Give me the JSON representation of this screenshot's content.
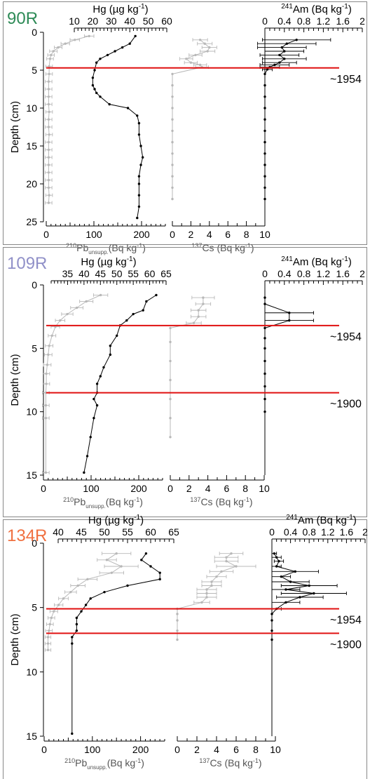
{
  "chart_data": [
    {
      "type": "line",
      "panel_label": "90R",
      "label_color": "#2e8b57",
      "ylabel": "Depth (cm)",
      "ylim": [
        0,
        25
      ],
      "y_ticks": [
        0,
        5,
        10,
        15,
        20,
        25
      ],
      "top_axis": {
        "label": "Hg (µg kg",
        "superscript": "-1",
        "close": ")",
        "xlim": [
          10,
          60
        ],
        "ticks": [
          10,
          20,
          30,
          40,
          50,
          60
        ]
      },
      "bottom_left_axis": {
        "label_sup": "210",
        "label_main": "Pb",
        "label_sub": "unsupp.",
        "label_rest": "(Bq kg",
        "label_rest_sup": "-1",
        "label_close": ")",
        "xlim": [
          0,
          250
        ],
        "ticks": [
          0,
          100,
          200
        ],
        "minor_ticks": [
          50,
          150
        ]
      },
      "bottom_mid_axis": {
        "label_sup": "137",
        "label_main": "Cs (Bq kg",
        "label_main_sup": "-1",
        "label_close": ")",
        "xlim": [
          0,
          10
        ],
        "ticks": [
          0,
          2,
          4,
          6,
          8,
          10
        ]
      },
      "top_right_axis": {
        "label_sup": "241",
        "label_main": "Am (Bq kg",
        "label_main_sup": "-1",
        "label_close": ")",
        "xlim": [
          0,
          2
        ],
        "ticks": [
          0,
          0.4,
          0.8,
          1.2,
          1.6,
          2
        ],
        "tick_labels": [
          "0",
          "0.4",
          "0.8",
          "1.2",
          "1.6",
          "2"
        ]
      },
      "date_lines": [
        {
          "depth": 4.7,
          "label": "~1954"
        }
      ],
      "series": [
        {
          "key": "hg",
          "axis": "top",
          "color": "#000000",
          "x": [
            43,
            40,
            36,
            32,
            28,
            24,
            22,
            21,
            20,
            20,
            21,
            22,
            24,
            29,
            39,
            44,
            45,
            45,
            46,
            47,
            46,
            45,
            45,
            45,
            45,
            44
          ],
          "y": [
            0.5,
            1.5,
            2,
            2.5,
            3,
            3.5,
            4,
            5,
            6,
            7,
            7.5,
            8,
            8.5,
            9.5,
            10,
            11,
            12,
            13.5,
            15,
            16.5,
            17.5,
            19,
            20,
            21.5,
            23,
            24.5
          ]
        },
        {
          "key": "pb",
          "axis": "bottom_left",
          "color": "#b8b8b8",
          "x": [
            90,
            60,
            40,
            25,
            15,
            10,
            8,
            6,
            6,
            5,
            5,
            5,
            5,
            6,
            5,
            5,
            6,
            5,
            5,
            5,
            5,
            5,
            5,
            5,
            6,
            5
          ],
          "xerr": [
            10,
            10,
            9,
            8,
            8,
            7,
            7,
            7,
            7,
            7,
            7,
            7,
            7,
            7,
            7,
            7,
            7,
            7,
            7,
            7,
            7,
            7,
            7,
            7,
            7,
            7
          ],
          "y": [
            0.5,
            1,
            1.5,
            2,
            2.5,
            3,
            3.5,
            4.5,
            5.5,
            6.5,
            7.5,
            8.5,
            9.5,
            10.5,
            11.5,
            12.5,
            13.5,
            14.5,
            15.5,
            16.5,
            17.5,
            18.5,
            19.5,
            20.5,
            21.5,
            22.5
          ]
        },
        {
          "key": "cs",
          "axis": "bottom_mid",
          "color": "#b8b8b8",
          "x": [
            3.0,
            3.5,
            4.0,
            3.8,
            2.5,
            1.5,
            2.0,
            3.0,
            3.2,
            0,
            0,
            0,
            0,
            0,
            0,
            0,
            0,
            0,
            0,
            0,
            0
          ],
          "xerr": [
            0.8,
            0.8,
            0.8,
            0.8,
            0.7,
            0.7,
            0.7,
            0.7,
            0.7,
            0,
            0,
            0,
            0,
            0,
            0,
            0,
            0,
            0,
            0,
            0,
            0
          ],
          "y": [
            1,
            1.5,
            2,
            2.5,
            3,
            3.5,
            4,
            4.3,
            4.6,
            5.5,
            7,
            8.5,
            10,
            11.5,
            13,
            14.5,
            16,
            17.5,
            19,
            20.5,
            22
          ]
        },
        {
          "key": "am",
          "axis": "top_right",
          "color": "#000000",
          "x": [
            0.65,
            0.45,
            0.35,
            0.4,
            0.3,
            0.4,
            0.3,
            0.2,
            0.1,
            0.05,
            0,
            0,
            0,
            0,
            0,
            0,
            0,
            0,
            0,
            0,
            0,
            0
          ],
          "xerr": [
            0.7,
            0.6,
            0.5,
            0.4,
            0.4,
            0.45,
            0.35,
            0.3,
            0.2,
            0.1,
            0,
            0,
            0,
            0,
            0,
            0,
            0,
            0,
            0,
            0,
            0,
            0
          ],
          "y": [
            1,
            1.5,
            2,
            2.5,
            3,
            3.5,
            4,
            4.3,
            4.6,
            4.9,
            5.5,
            7,
            8.5,
            10,
            11.5,
            13,
            14.5,
            16,
            17.5,
            19,
            20.5,
            22
          ]
        }
      ]
    },
    {
      "type": "line",
      "panel_label": "109R",
      "label_color": "#9090c8",
      "ylabel": "Depth (cm)",
      "ylim": [
        0,
        15
      ],
      "y_ticks": [
        0,
        5,
        10,
        15
      ],
      "top_axis": {
        "label": "Hg (µg kg",
        "superscript": "-1",
        "close": ")",
        "xlim": [
          30,
          65
        ],
        "ticks": [
          35,
          40,
          45,
          50,
          55,
          60,
          65
        ]
      },
      "bottom_left_axis": {
        "label_sup": "210",
        "label_main": "Pb",
        "label_sub": "unsupp.",
        "label_rest": "(Bq kg",
        "label_rest_sup": "-1",
        "label_close": ")",
        "xlim": [
          0,
          250
        ],
        "ticks": [
          0,
          100,
          200
        ],
        "minor_ticks": [
          50,
          150
        ]
      },
      "bottom_mid_axis": {
        "label_sup": "137",
        "label_main": "Cs (Bq kg",
        "label_main_sup": "-1",
        "label_close": ")",
        "xlim": [
          0,
          10
        ],
        "ticks": [
          0,
          2,
          4,
          6,
          8,
          10
        ]
      },
      "top_right_axis": {
        "label_sup": "241",
        "label_main": "Am (Bq kg",
        "label_main_sup": "-1",
        "label_close": ")",
        "xlim": [
          0,
          2
        ],
        "ticks": [
          0,
          0.4,
          0.8,
          1.2,
          1.6,
          2
        ],
        "tick_labels": [
          "0",
          "0.4",
          "0.8",
          "1.2",
          "1.6",
          "2"
        ]
      },
      "date_lines": [
        {
          "depth": 3.2,
          "label": "~1954"
        },
        {
          "depth": 8.5,
          "label": "~1900"
        }
      ],
      "series": [
        {
          "key": "hg",
          "axis": "top",
          "color": "#000000",
          "x": [
            62,
            59,
            58,
            55,
            53,
            51,
            50,
            48,
            48,
            46,
            45,
            44,
            44,
            43,
            44,
            43,
            42,
            41,
            40
          ],
          "y": [
            0.8,
            1.3,
            2,
            2.3,
            2.8,
            3.2,
            4,
            4.8,
            5.5,
            6.5,
            7.2,
            7.8,
            8.5,
            9,
            9.5,
            10.5,
            12,
            13.5,
            14.8
          ]
        },
        {
          "key": "pb",
          "axis": "bottom_left",
          "color": "#b8b8b8",
          "x": [
            120,
            90,
            70,
            50,
            35,
            25,
            18,
            12,
            10,
            8,
            6,
            6,
            5,
            5,
            5,
            5
          ],
          "xerr": [
            15,
            14,
            13,
            12,
            10,
            9,
            8,
            8,
            8,
            8,
            7,
            7,
            7,
            7,
            7,
            7
          ],
          "y": [
            0.8,
            1.3,
            1.8,
            2.3,
            2.8,
            3.3,
            4,
            4.8,
            5.5,
            6.3,
            7,
            7.8,
            8.5,
            9.5,
            10.5,
            14.8
          ]
        },
        {
          "key": "cs",
          "axis": "bottom_mid",
          "color": "#b8b8b8",
          "x": [
            3.5,
            3.5,
            3.0,
            3.0,
            2.5,
            0,
            0,
            0,
            0,
            0,
            0,
            0
          ],
          "xerr": [
            1.2,
            0.8,
            0.8,
            0.8,
            0.8,
            0,
            0,
            0,
            0,
            0,
            0,
            0
          ],
          "y": [
            1,
            1.5,
            2,
            2.5,
            3,
            3.4,
            4.5,
            6,
            7.5,
            9,
            10.5,
            12
          ]
        },
        {
          "key": "am",
          "axis": "top_right",
          "color": "#000000",
          "x": [
            0,
            0,
            0.5,
            0.5,
            0,
            0,
            0,
            0,
            0,
            0,
            0,
            0
          ],
          "xerr": [
            0,
            0,
            0.5,
            0.5,
            0,
            0,
            0,
            0,
            0,
            0,
            0,
            0
          ],
          "y": [
            1,
            1.5,
            2.2,
            2.8,
            3.4,
            4.2,
            5,
            6,
            7,
            8,
            9,
            10
          ]
        }
      ]
    },
    {
      "type": "line",
      "panel_label": "134R",
      "label_color": "#f07040",
      "ylabel": "Depth (cm)",
      "ylim": [
        0,
        15
      ],
      "y_ticks": [
        0,
        5,
        10,
        15
      ],
      "top_axis": {
        "label": "Hg (µg kg",
        "superscript": "-1",
        "close": ")",
        "xlim": [
          40,
          65
        ],
        "ticks": [
          40,
          45,
          50,
          55,
          60,
          65
        ]
      },
      "bottom_left_axis": {
        "label_sup": "210",
        "label_main": "Pb",
        "label_sub": "unsupp.",
        "label_rest": "(Bq kg",
        "label_rest_sup": "-1",
        "label_close": ")",
        "xlim": [
          0,
          250
        ],
        "ticks": [
          0,
          100,
          200
        ],
        "minor_ticks": [
          50,
          150
        ]
      },
      "bottom_mid_axis": {
        "label_sup": "137",
        "label_main": "Cs (Bq kg",
        "label_main_sup": "-1",
        "label_close": ")",
        "xlim": [
          0,
          10
        ],
        "ticks": [
          0,
          2,
          4,
          6,
          8,
          10
        ]
      },
      "top_right_axis": {
        "label_sup": "241",
        "label_main": "Am (Bq kg",
        "label_main_sup": "-1",
        "label_close": ")",
        "xlim": [
          0,
          2
        ],
        "ticks": [
          0,
          0.4,
          0.8,
          1.2,
          1.6,
          2
        ],
        "tick_labels": [
          "0",
          "0.4",
          "0.8",
          "1.2",
          "1.6",
          "2"
        ]
      },
      "date_lines": [
        {
          "depth": 5.1,
          "label": "~1954"
        },
        {
          "depth": 7.0,
          "label": "~1900"
        }
      ],
      "series": [
        {
          "key": "hg",
          "axis": "top",
          "color": "#000000",
          "x": [
            59,
            58,
            60,
            62,
            62,
            55,
            50,
            47,
            46,
            45,
            44,
            44,
            44,
            43,
            43,
            43
          ],
          "y": [
            0.8,
            1.3,
            1.8,
            2.3,
            2.8,
            3.3,
            3.8,
            4.3,
            4.8,
            5.3,
            5.8,
            6.3,
            6.8,
            7.3,
            7.8,
            14.8
          ]
        },
        {
          "key": "pb",
          "axis": "bottom_left",
          "color": "#b8b8b8",
          "x": [
            150,
            130,
            160,
            140,
            90,
            70,
            55,
            40,
            30,
            20,
            15,
            12,
            10,
            8,
            8,
            8
          ],
          "xerr": [
            30,
            20,
            35,
            25,
            20,
            15,
            12,
            10,
            9,
            8,
            7,
            7,
            7,
            6,
            6,
            6
          ],
          "y": [
            0.8,
            1.3,
            1.8,
            2.3,
            2.8,
            3.3,
            3.8,
            4.3,
            4.8,
            5.3,
            5.8,
            6.3,
            6.8,
            7.3,
            7.8,
            8.3
          ]
        },
        {
          "key": "cs",
          "axis": "bottom_mid",
          "color": "#b8b8b8",
          "x": [
            5.5,
            5.0,
            5.0,
            6.0,
            4.5,
            4.0,
            3.5,
            3.5,
            3.0,
            3.0,
            3.0,
            2.5,
            0,
            0,
            0,
            0,
            0
          ],
          "xerr": [
            1.2,
            1.2,
            1.2,
            2.0,
            1.2,
            1.0,
            1.0,
            1.0,
            1.0,
            1.0,
            1.0,
            0.8,
            0,
            0,
            0,
            0,
            0
          ],
          "y": [
            0.8,
            1.1,
            1.4,
            1.8,
            2.2,
            2.6,
            3.0,
            3.3,
            3.6,
            3.9,
            4.2,
            4.6,
            5.1,
            5.5,
            6,
            6.8,
            7.5
          ]
        },
        {
          "key": "am",
          "axis": "top_right",
          "color": "#000000",
          "x": [
            0.05,
            0.1,
            0.15,
            0.1,
            0.5,
            0.2,
            0.4,
            0.8,
            0.3,
            0.9,
            0.6,
            0.3,
            0.1,
            0,
            0,
            0,
            0
          ],
          "xerr": [
            0.05,
            0.1,
            0.1,
            0.1,
            0.5,
            0.2,
            0.4,
            0.6,
            0.3,
            0.7,
            0.5,
            0.3,
            0.1,
            0,
            0,
            0,
            0
          ],
          "y": [
            0.8,
            1.1,
            1.4,
            1.8,
            2.2,
            2.6,
            3.0,
            3.3,
            3.6,
            3.9,
            4.2,
            4.6,
            5.1,
            5.5,
            6,
            6.8,
            7.5
          ]
        }
      ]
    }
  ]
}
